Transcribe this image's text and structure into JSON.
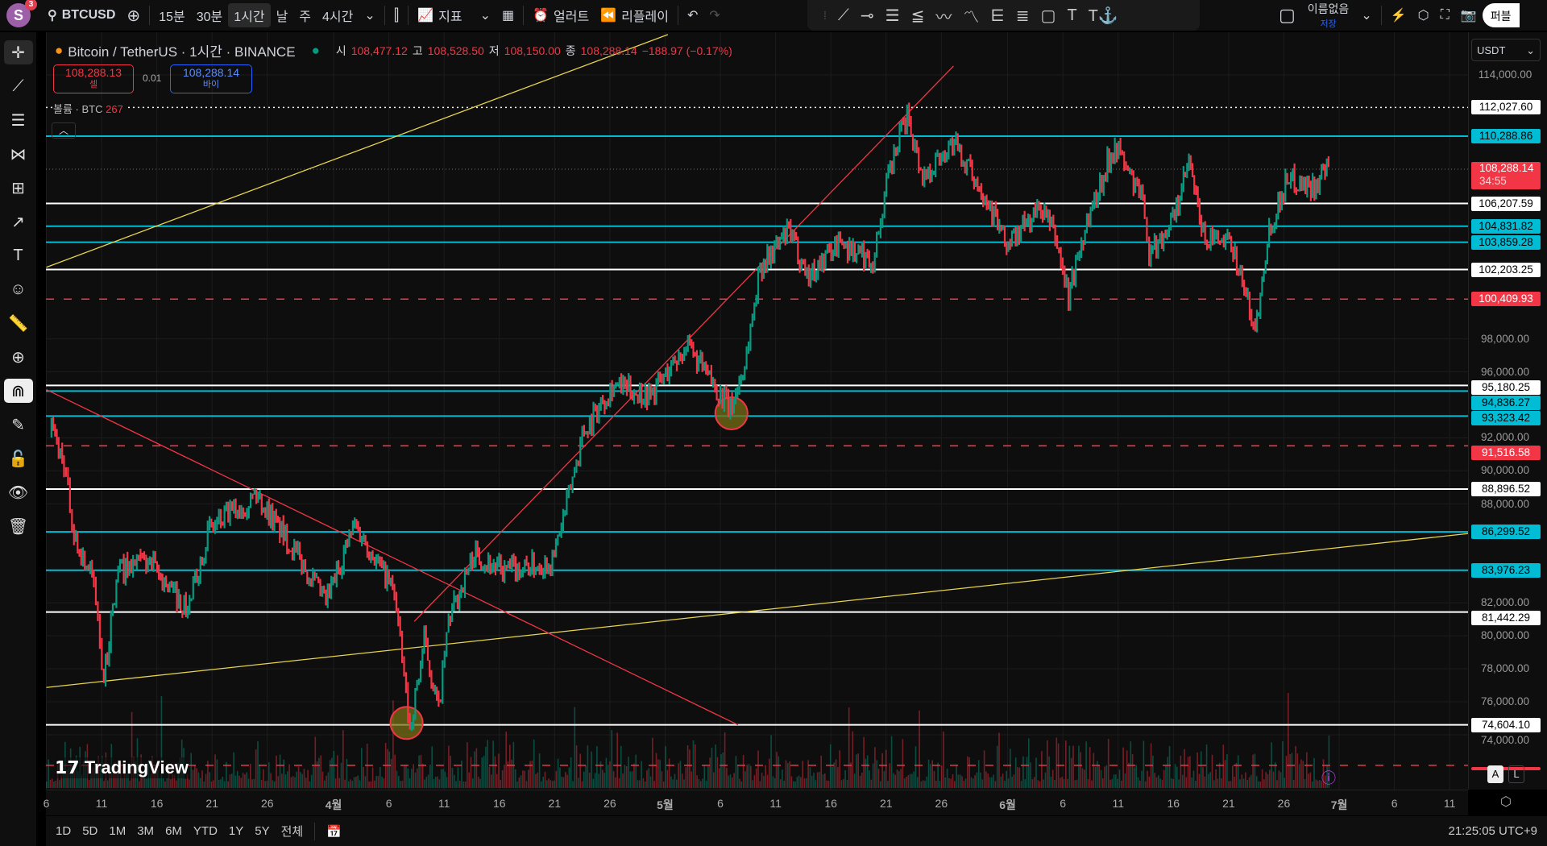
{
  "topbar": {
    "avatar": "S",
    "badge": "3",
    "symbol": "BTCUSD",
    "intervals": [
      "15분",
      "30분",
      "1시간",
      "날",
      "주",
      "4시간"
    ],
    "active_interval": "1시간",
    "indicators": "지표",
    "alert": "얼러트",
    "replay": "리플레이",
    "layout_name": "이름없음",
    "layout_save": "저장",
    "publish": "퍼블"
  },
  "legend": {
    "title": "Bitcoin / TetherUS · 1시간 · BINANCE",
    "o_label": "시",
    "o": "108,477.12",
    "h_label": "고",
    "h": "108,528.50",
    "l_label": "저",
    "l": "108,150.00",
    "c_label": "종",
    "c": "108,288.14",
    "change": "−188.97 (−0.17%)",
    "volume_label": "볼륨 · BTC",
    "volume": "267"
  },
  "order": {
    "sell_price": "108,288.13",
    "sell_label": "셀",
    "spread": "0.01",
    "buy_price": "108,288.14",
    "buy_label": "바이"
  },
  "currency": "USDT",
  "price_ticks": [
    "114,000.00",
    "98,000.00",
    "96,000.00",
    "92,000.00",
    "90,000.00",
    "88,000.00",
    "82,000.00",
    "80,000.00",
    "78,000.00",
    "76,000.00",
    "74,000.00"
  ],
  "price_tick_values": [
    114000,
    98000,
    96000,
    92000,
    90000,
    88000,
    82000,
    80000,
    78000,
    76000,
    74000
  ],
  "levels": [
    {
      "price": 112027.6,
      "label": "112,027.60",
      "color": "#ffffff",
      "style": "dotted"
    },
    {
      "price": 110288.86,
      "label": "110,288.86",
      "color": "#00bcd4",
      "style": "solid"
    },
    {
      "price": 106207.59,
      "label": "106,207.59",
      "color": "#ffffff",
      "style": "solid"
    },
    {
      "price": 104831.82,
      "label": "104,831.82",
      "color": "#00bcd4",
      "style": "solid"
    },
    {
      "price": 103859.28,
      "label": "103,859.28",
      "color": "#00bcd4",
      "style": "solid"
    },
    {
      "price": 102203.25,
      "label": "102,203.25",
      "color": "#ffffff",
      "style": "solid"
    },
    {
      "price": 100409.93,
      "label": "100,409.93",
      "color": "#f23645",
      "style": "dashed"
    },
    {
      "price": 95180.25,
      "label": "95,180.25",
      "color": "#ffffff",
      "style": "solid"
    },
    {
      "price": 94836.27,
      "label": "94,836.27",
      "color": "#00bcd4",
      "style": "solid"
    },
    {
      "price": 93323.42,
      "label": "93,323.42",
      "color": "#00bcd4",
      "style": "solid"
    },
    {
      "price": 91516.58,
      "label": "91,516.58",
      "color": "#f23645",
      "style": "dashed"
    },
    {
      "price": 88896.52,
      "label": "88,896.52",
      "color": "#ffffff",
      "style": "solid"
    },
    {
      "price": 86299.52,
      "label": "86,299.52",
      "color": "#00bcd4",
      "style": "solid"
    },
    {
      "price": 83976.23,
      "label": "83,976.23",
      "color": "#00bcd4",
      "style": "solid"
    },
    {
      "price": 81442.29,
      "label": "81,442.29",
      "color": "#ffffff",
      "style": "solid"
    },
    {
      "price": 74604.1,
      "label": "74,604.10",
      "color": "#ffffff",
      "style": "solid"
    },
    {
      "price": 72150,
      "label": "",
      "color": "#f23645",
      "style": "dashed"
    }
  ],
  "current": {
    "price": 108288.14,
    "label": "108,288.14",
    "countdown": "34:55"
  },
  "x_ticks": [
    {
      "d": 0,
      "t": "6"
    },
    {
      "d": 5,
      "t": "11"
    },
    {
      "d": 10,
      "t": "16"
    },
    {
      "d": 15,
      "t": "21"
    },
    {
      "d": 20,
      "t": "26"
    },
    {
      "d": 26,
      "t": "4월"
    },
    {
      "d": 31,
      "t": "6"
    },
    {
      "d": 36,
      "t": "11"
    },
    {
      "d": 41,
      "t": "16"
    },
    {
      "d": 46,
      "t": "21"
    },
    {
      "d": 51,
      "t": "26"
    },
    {
      "d": 56,
      "t": "5월"
    },
    {
      "d": 61,
      "t": "6"
    },
    {
      "d": 66,
      "t": "11"
    },
    {
      "d": 71,
      "t": "16"
    },
    {
      "d": 76,
      "t": "21"
    },
    {
      "d": 81,
      "t": "26"
    },
    {
      "d": 87,
      "t": "6월"
    },
    {
      "d": 92,
      "t": "6"
    },
    {
      "d": 97,
      "t": "11"
    },
    {
      "d": 102,
      "t": "16"
    },
    {
      "d": 107,
      "t": "21"
    },
    {
      "d": 112,
      "t": "26"
    },
    {
      "d": 117,
      "t": "7월"
    },
    {
      "d": 122,
      "t": "6"
    },
    {
      "d": 127,
      "t": "11"
    }
  ],
  "chart_data": {
    "type": "line",
    "series": [
      {
        "name": "BTCUSD 1h",
        "points": [
          [
            0.3,
            92800
          ],
          [
            1.6,
            90500
          ],
          [
            2.5,
            86000
          ],
          [
            4.3,
            83300
          ],
          [
            5.2,
            77300
          ],
          [
            6.5,
            84000
          ],
          [
            9.2,
            84500
          ],
          [
            12.8,
            81500
          ],
          [
            14.6,
            86300
          ],
          [
            19,
            88600
          ],
          [
            22.6,
            85000
          ],
          [
            25.3,
            82000
          ],
          [
            27.9,
            86800
          ],
          [
            31.5,
            82700
          ],
          [
            32.9,
            74300
          ],
          [
            34.2,
            79700
          ],
          [
            35.5,
            75500
          ],
          [
            36.4,
            80900
          ],
          [
            38.7,
            85000
          ],
          [
            41.3,
            83900
          ],
          [
            45.8,
            84500
          ],
          [
            47.1,
            88000
          ],
          [
            48.5,
            92200
          ],
          [
            51.2,
            95200
          ],
          [
            54.7,
            94600
          ],
          [
            57.9,
            97600
          ],
          [
            61,
            94600
          ],
          [
            61.9,
            93700
          ],
          [
            63.2,
            96400
          ],
          [
            64.6,
            102400
          ],
          [
            67.2,
            104500
          ],
          [
            69,
            101800
          ],
          [
            71.7,
            103900
          ],
          [
            74.8,
            102700
          ],
          [
            76.2,
            107800
          ],
          [
            77.9,
            111700
          ],
          [
            79.3,
            107800
          ],
          [
            82,
            109900
          ],
          [
            85.1,
            106600
          ],
          [
            86.9,
            103600
          ],
          [
            90,
            106000
          ],
          [
            91.3,
            104200
          ],
          [
            92.5,
            100600
          ],
          [
            94,
            104800
          ],
          [
            96.7,
            109900
          ],
          [
            99.4,
            106000
          ],
          [
            99.8,
            103000
          ],
          [
            102.1,
            105400
          ],
          [
            103.4,
            108700
          ],
          [
            104.7,
            104200
          ],
          [
            107.4,
            103600
          ],
          [
            109.4,
            98500
          ],
          [
            110.5,
            104200
          ],
          [
            112.3,
            107800
          ],
          [
            114.6,
            107200
          ],
          [
            116.2,
            108300
          ]
        ]
      }
    ],
    "trendlines": [
      {
        "color": "#e8d44d",
        "from": [
          0,
          102340
        ],
        "to": [
          56.25,
          116450
        ]
      },
      {
        "color": "#e8d44d",
        "from": [
          0,
          76870
        ],
        "to": [
          128.7,
          86200
        ]
      },
      {
        "color": "#f23645",
        "from": [
          0,
          94926
        ],
        "to": [
          62.6,
          74600
        ]
      },
      {
        "color": "#f23645",
        "from": [
          33.3,
          80876
        ],
        "to": [
          82.1,
          114540
        ]
      }
    ],
    "circles": [
      [
        62,
        93490
      ],
      [
        32.6,
        74720
      ]
    ]
  },
  "watermark": "TradingView",
  "scale_buttons": [
    "A",
    "L"
  ],
  "ranges": [
    "1D",
    "5D",
    "1M",
    "3M",
    "6M",
    "YTD",
    "1Y",
    "5Y",
    "전체"
  ],
  "clock": "21:25:05 UTC+9"
}
